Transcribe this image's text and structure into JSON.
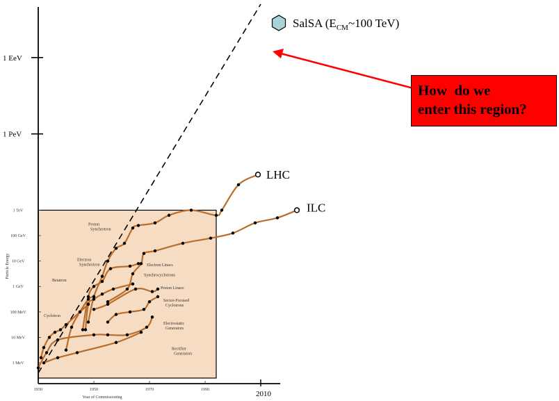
{
  "chart_data": {
    "type": "line",
    "title": "",
    "xlabel": "Year of Commissioning",
    "ylabel": "Particle Energy",
    "x_range": [
      1930,
      2020
    ],
    "y_scale": "log-eV",
    "y_range_log_eV": [
      5.4,
      19.9
    ],
    "y_ticks_outer": [
      {
        "label": "1 EeV",
        "log": 18
      },
      {
        "label": "1 PeV",
        "log": 15
      }
    ],
    "y_ticks_inner": [
      {
        "label": "1 TeV",
        "log": 12
      },
      {
        "label": "100 GeV",
        "log": 11
      },
      {
        "label": "10 GeV",
        "log": 10
      },
      {
        "label": "1 GeV",
        "log": 9
      },
      {
        "label": "100 MeV",
        "log": 8
      },
      {
        "label": "10 MeV",
        "log": 7
      },
      {
        "label": "1 MeV",
        "log": 6
      }
    ],
    "x_ticks_inner": [
      {
        "label": "1930",
        "year": 1930
      },
      {
        "label": "1950",
        "year": 1950
      },
      {
        "label": "1970",
        "year": 1970
      },
      {
        "label": "1990",
        "year": 1990
      }
    ],
    "x_ticks_outer": [
      {
        "label": "2010",
        "year": 2010
      }
    ],
    "trend_line": {
      "from": [
        1930,
        5.6
      ],
      "to": [
        2010,
        20.1
      ],
      "style": "dashed"
    },
    "series": [
      {
        "name": "Rectifier Generators",
        "points": [
          [
            1932,
            6.0
          ],
          [
            1937,
            6.2
          ],
          [
            1944,
            6.4
          ],
          [
            1958,
            6.8
          ],
          [
            1967,
            7.2
          ]
        ]
      },
      {
        "name": "Electrostatic Generators",
        "points": [
          [
            1930,
            5.8
          ],
          [
            1933,
            6.4
          ],
          [
            1937,
            6.9
          ],
          [
            1950,
            7.1
          ],
          [
            1955,
            7.1
          ],
          [
            1962,
            7.1
          ],
          [
            1969,
            7.4
          ],
          [
            1971,
            7.8
          ]
        ]
      },
      {
        "name": "Cyclotrons",
        "points": [
          [
            1931,
            6.2
          ],
          [
            1932,
            6.6
          ],
          [
            1934,
            7.0
          ],
          [
            1936,
            7.2
          ],
          [
            1938,
            7.3
          ],
          [
            1940,
            7.5
          ],
          [
            1945,
            8.0
          ],
          [
            1948,
            8.3
          ]
        ]
      },
      {
        "name": "Betatrons",
        "points": [
          [
            1940,
            6.5
          ],
          [
            1942,
            7.4
          ],
          [
            1945,
            8.0
          ],
          [
            1948,
            8.5
          ],
          [
            1950,
            8.6
          ]
        ]
      },
      {
        "name": "Synchrocyclotrons",
        "points": [
          [
            1947,
            7.3
          ],
          [
            1948,
            8.3
          ],
          [
            1950,
            8.5
          ],
          [
            1953,
            8.7
          ],
          [
            1957,
            8.9
          ],
          [
            1964,
            9.1
          ]
        ]
      },
      {
        "name": "Sector-Focused Cyclotrons",
        "points": [
          [
            1955,
            7.6
          ],
          [
            1958,
            7.9
          ],
          [
            1963,
            8.0
          ],
          [
            1968,
            8.1
          ],
          [
            1970,
            8.4
          ],
          [
            1973,
            8.6
          ]
        ]
      },
      {
        "name": "Electron Synchrotrons",
        "points": [
          [
            1946,
            7.3
          ],
          [
            1948,
            8.6
          ],
          [
            1950,
            9.0
          ],
          [
            1953,
            9.2
          ],
          [
            1956,
            9.7
          ],
          [
            1963,
            9.8
          ],
          [
            1966,
            9.9
          ]
        ]
      },
      {
        "name": "Proton Synchrotrons",
        "points": [
          [
            1948,
            7.6
          ],
          [
            1950,
            8.6
          ],
          [
            1953,
            9.4
          ],
          [
            1955,
            10.0
          ],
          [
            1958,
            10.5
          ],
          [
            1961,
            10.7
          ],
          [
            1964,
            11.3
          ],
          [
            1966,
            11.4
          ],
          [
            1972,
            11.5
          ],
          [
            1977,
            11.8
          ],
          [
            1985,
            12.0
          ],
          [
            1994,
            11.8
          ],
          [
            1996,
            12.0
          ],
          [
            2002,
            13.0
          ],
          [
            2009,
            13.4
          ]
        ]
      },
      {
        "name": "Electron Linacs",
        "points": [
          [
            1955,
            8.4
          ],
          [
            1962,
            8.9
          ],
          [
            1964,
            9.5
          ],
          [
            1967,
            9.9
          ],
          [
            1968,
            10.3
          ],
          [
            1972,
            10.4
          ],
          [
            1982,
            10.7
          ],
          [
            1992,
            10.9
          ],
          [
            2000,
            11.1
          ],
          [
            2008,
            11.5
          ],
          [
            2016,
            11.7
          ],
          [
            2023,
            12.0
          ]
        ]
      },
      {
        "name": "Proton Linacs",
        "points": [
          [
            1950,
            8.1
          ],
          [
            1955,
            8.3
          ],
          [
            1965,
            8.9
          ],
          [
            1971,
            8.8
          ],
          [
            1973,
            8.9
          ]
        ]
      }
    ],
    "labels": {
      "lhc": "LHC",
      "ilc": "ILC",
      "salsa_pre": "SalSA (E",
      "salsa_sub": "CM",
      "salsa_post": "~100 TeV)",
      "callout": "How  do we\nenter this region?"
    },
    "colors": {
      "curve": "#b86d2c",
      "dot": "#000000",
      "inset_bg": "#f6dcc2",
      "hexagon": "#a9d4d5",
      "arrow": "#ff0000",
      "callout_bg": "#ff0000"
    }
  }
}
